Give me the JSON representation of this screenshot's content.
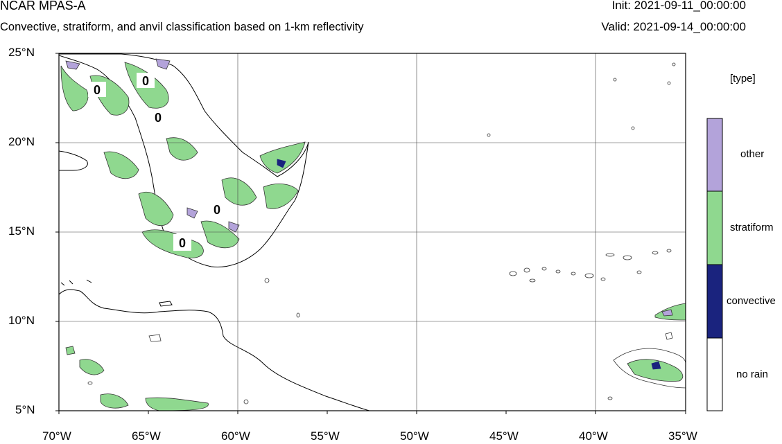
{
  "header": {
    "title": "NCAR MPAS-A",
    "subtitle": "Convective, stratiform, and anvil classification based on 1-km reflectivity",
    "init": "Init: 2021-09-11_00:00:00",
    "valid": "Valid: 2021-09-14_00:00:00"
  },
  "axes": {
    "lat_labels": [
      "25°N",
      "20°N",
      "15°N",
      "10°N",
      "5°N"
    ],
    "lon_labels": [
      "70°W",
      "65°W",
      "60°W",
      "55°W",
      "50°W",
      "45°W",
      "40°W",
      "35°W"
    ],
    "lat_range": [
      5,
      25
    ],
    "lon_range": [
      -70,
      -35
    ]
  },
  "legend": {
    "title": "[type]",
    "items": [
      {
        "label": "other",
        "color": "#b3a3da"
      },
      {
        "label": "stratiform",
        "color": "#8fd88f"
      },
      {
        "label": "convective",
        "color": "#1a237e"
      },
      {
        "label": "no rain",
        "color": "#ffffff"
      }
    ]
  },
  "contour_labels": [
    "0",
    "0",
    "0",
    "0",
    "0"
  ]
}
